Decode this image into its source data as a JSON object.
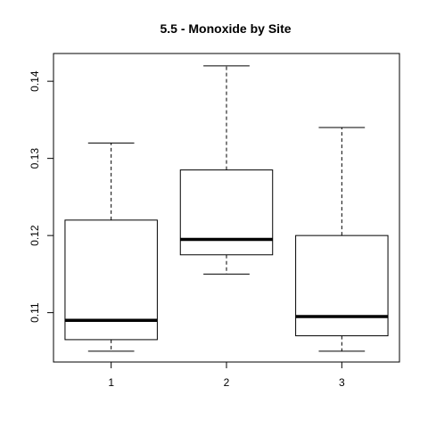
{
  "chart_data": {
    "type": "boxplot",
    "title": "5.5 - Monoxide by Site",
    "xlabel": "",
    "ylabel": "",
    "categories": [
      "1",
      "2",
      "3"
    ],
    "boxes": [
      {
        "category": "1",
        "whisker_low": 0.105,
        "q1": 0.1065,
        "median": 0.109,
        "q3": 0.122,
        "whisker_high": 0.132
      },
      {
        "category": "2",
        "whisker_low": 0.115,
        "q1": 0.1175,
        "median": 0.1195,
        "q3": 0.1285,
        "whisker_high": 0.142
      },
      {
        "category": "3",
        "whisker_low": 0.105,
        "q1": 0.107,
        "median": 0.1095,
        "q3": 0.12,
        "whisker_high": 0.134
      }
    ],
    "y_ticks": [
      0.11,
      0.12,
      0.13,
      0.14
    ],
    "y_tick_labels": [
      "0.11",
      "0.12",
      "0.13",
      "0.14"
    ],
    "ylim": [
      0.1036,
      0.1436
    ],
    "xlim": [
      0.5,
      3.5
    ],
    "grid": false,
    "legend": "none"
  }
}
